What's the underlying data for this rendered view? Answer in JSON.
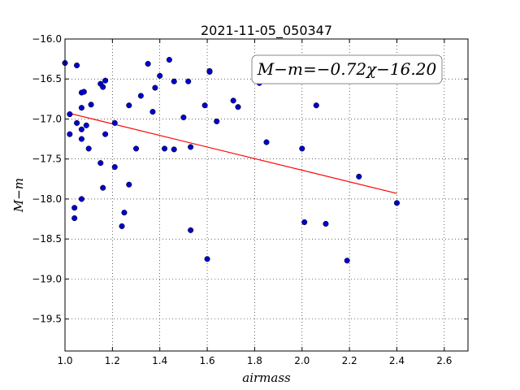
{
  "chart_data": {
    "type": "scatter",
    "title": "2021-11-05_050347",
    "xlabel": "airmass",
    "ylabel": "M−m",
    "xlim": [
      1.0,
      2.7
    ],
    "ylim": [
      -16.0,
      -19.9
    ],
    "y_inverted": true,
    "xticks": [
      "1.0",
      "1.2",
      "1.4",
      "1.6",
      "1.8",
      "2.0",
      "2.2",
      "2.4",
      "2.6"
    ],
    "yticks": [
      "−16.0",
      "−16.5",
      "−17.0",
      "−17.5",
      "−18.0",
      "−18.5",
      "−19.0",
      "−19.5"
    ],
    "grid": true,
    "annotation": "M−m=−0.72χ−16.20",
    "point_color": "#0000cc",
    "line_color": "#ff0000",
    "fit_line": {
      "x": [
        1.02,
        2.4
      ],
      "y": [
        -16.93,
        -17.93
      ]
    },
    "points": [
      {
        "x": 1.0,
        "y": -16.3
      },
      {
        "x": 1.05,
        "y": -16.33
      },
      {
        "x": 1.07,
        "y": -16.67
      },
      {
        "x": 1.08,
        "y": -16.66
      },
      {
        "x": 1.02,
        "y": -16.94
      },
      {
        "x": 1.07,
        "y": -16.86
      },
      {
        "x": 1.11,
        "y": -16.82
      },
      {
        "x": 1.02,
        "y": -17.19
      },
      {
        "x": 1.05,
        "y": -17.05
      },
      {
        "x": 1.07,
        "y": -17.13
      },
      {
        "x": 1.09,
        "y": -17.08
      },
      {
        "x": 1.07,
        "y": -17.25
      },
      {
        "x": 1.1,
        "y": -17.37
      },
      {
        "x": 1.04,
        "y": -18.11
      },
      {
        "x": 1.04,
        "y": -18.24
      },
      {
        "x": 1.07,
        "y": -18.0
      },
      {
        "x": 1.15,
        "y": -16.56
      },
      {
        "x": 1.16,
        "y": -16.6
      },
      {
        "x": 1.17,
        "y": -16.52
      },
      {
        "x": 1.17,
        "y": -17.19
      },
      {
        "x": 1.15,
        "y": -17.55
      },
      {
        "x": 1.16,
        "y": -17.86
      },
      {
        "x": 1.21,
        "y": -17.05
      },
      {
        "x": 1.21,
        "y": -17.6
      },
      {
        "x": 1.24,
        "y": -18.34
      },
      {
        "x": 1.25,
        "y": -18.17
      },
      {
        "x": 1.27,
        "y": -16.83
      },
      {
        "x": 1.27,
        "y": -17.82
      },
      {
        "x": 1.3,
        "y": -17.37
      },
      {
        "x": 1.32,
        "y": -16.71
      },
      {
        "x": 1.35,
        "y": -16.31
      },
      {
        "x": 1.37,
        "y": -16.91
      },
      {
        "x": 1.38,
        "y": -16.61
      },
      {
        "x": 1.4,
        "y": -16.46
      },
      {
        "x": 1.42,
        "y": -17.37
      },
      {
        "x": 1.44,
        "y": -16.26
      },
      {
        "x": 1.46,
        "y": -16.53
      },
      {
        "x": 1.46,
        "y": -17.38
      },
      {
        "x": 1.5,
        "y": -16.98
      },
      {
        "x": 1.52,
        "y": -16.53
      },
      {
        "x": 1.53,
        "y": -17.35
      },
      {
        "x": 1.53,
        "y": -18.39
      },
      {
        "x": 1.59,
        "y": -16.83
      },
      {
        "x": 1.6,
        "y": -18.75
      },
      {
        "x": 1.61,
        "y": -16.41
      },
      {
        "x": 1.61,
        "y": -16.4
      },
      {
        "x": 1.64,
        "y": -17.03
      },
      {
        "x": 1.71,
        "y": -16.77
      },
      {
        "x": 1.73,
        "y": -16.85
      },
      {
        "x": 1.82,
        "y": -16.55
      },
      {
        "x": 1.85,
        "y": -17.29
      },
      {
        "x": 2.0,
        "y": -17.37
      },
      {
        "x": 2.01,
        "y": -18.29
      },
      {
        "x": 2.06,
        "y": -16.83
      },
      {
        "x": 2.1,
        "y": -18.31
      },
      {
        "x": 2.19,
        "y": -18.77
      },
      {
        "x": 2.24,
        "y": -17.72
      },
      {
        "x": 2.4,
        "y": -18.05
      }
    ]
  }
}
